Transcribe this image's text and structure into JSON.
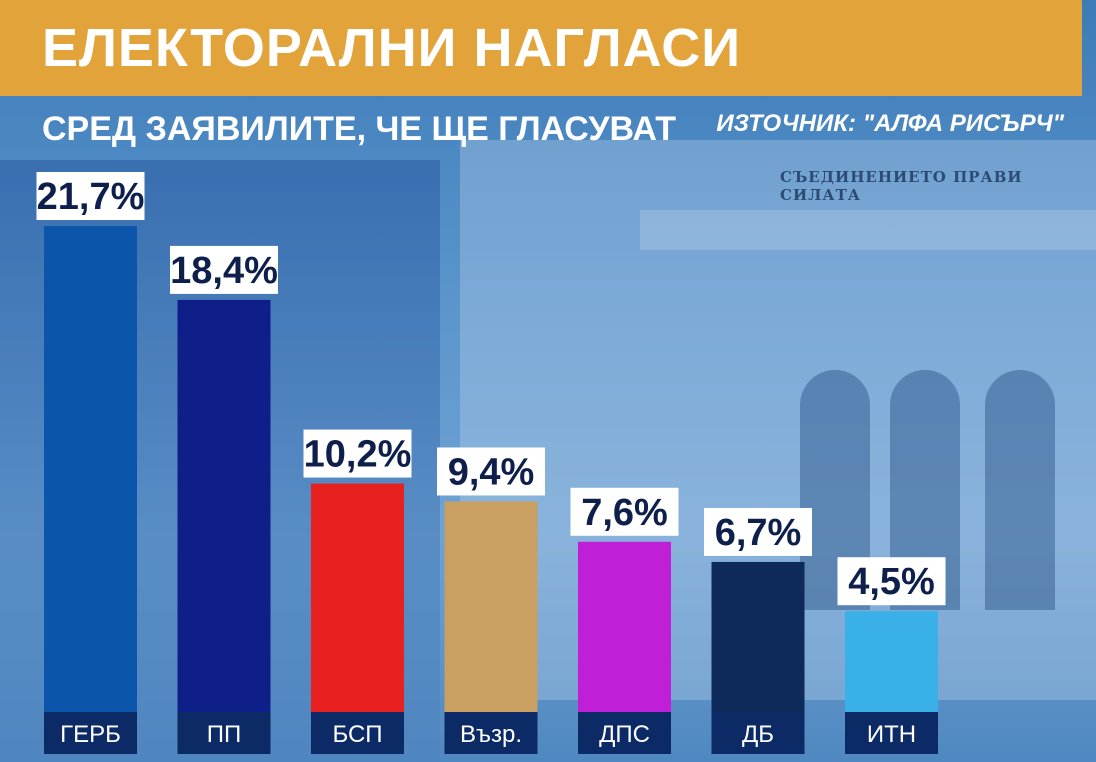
{
  "header": {
    "title": "ЕЛЕКТОРАЛНИ НАГЛАСИ",
    "subtitle": "СРЕД ЗАЯВИЛИТЕ, ЧЕ ЩЕ ГЛАСУВАТ",
    "source": "ИЗТОЧНИК: \"АЛФА РИСЪРЧ\""
  },
  "background": {
    "engraving": "СЪЕДИНЕНИЕТО ПРАВИ СИЛАТА"
  },
  "chart_data": {
    "type": "bar",
    "title": "ЕЛЕКТОРАЛНИ НАГЛАСИ",
    "subtitle": "СРЕД ЗАЯВИЛИТЕ, ЧЕ ЩЕ ГЛАСУВАТ",
    "categories": [
      "ГЕРБ",
      "ПП",
      "БСП",
      "Възр.",
      "ДПС",
      "ДБ",
      "ИТН"
    ],
    "values": [
      21.7,
      18.4,
      10.2,
      9.4,
      7.6,
      6.7,
      4.5
    ],
    "labels": [
      "21,7%",
      "18,4%",
      "10,2%",
      "9,4%",
      "7,6%",
      "6,7%",
      "4,5%"
    ],
    "colors": [
      "#0b56ab",
      "#0f1f8a",
      "#e8201f",
      "#c9a062",
      "#bf1fd6",
      "#0e2a5a",
      "#3ab0e8"
    ],
    "label_box_color": "#ffffff",
    "category_box_color": "#0c2a66",
    "xlabel": "",
    "ylabel": "",
    "ylim": [
      0,
      21.7
    ],
    "grid": false,
    "legend": "none"
  }
}
